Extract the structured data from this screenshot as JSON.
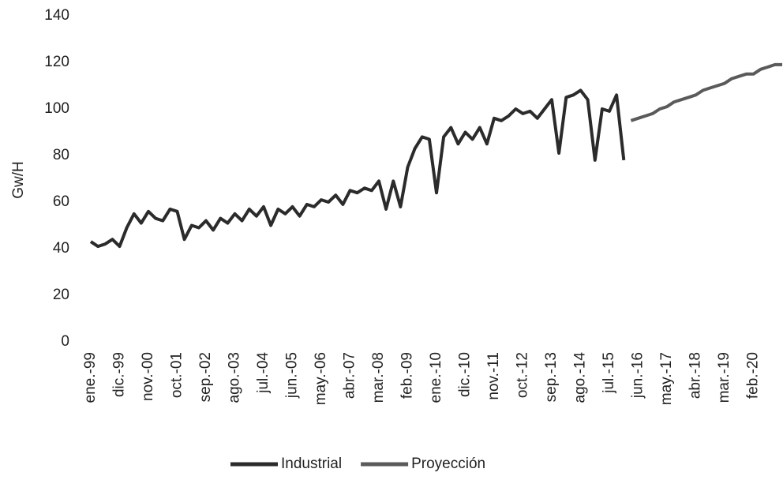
{
  "chart_data": {
    "type": "line",
    "y_label": "Gw/H",
    "categories": [
      "ene.-99",
      null,
      null,
      null,
      "dic.-99",
      null,
      null,
      null,
      "nov.-00",
      null,
      null,
      null,
      "oct.-01",
      null,
      null,
      null,
      "sep.-02",
      null,
      null,
      null,
      "ago.-03",
      null,
      null,
      null,
      "jul.-04",
      null,
      null,
      null,
      "jun.-05",
      null,
      null,
      null,
      "may.-06",
      null,
      null,
      null,
      "abr.-07",
      null,
      null,
      null,
      "mar.-08",
      null,
      null,
      null,
      "feb.-09",
      null,
      null,
      null,
      "ene.-10",
      null,
      null,
      null,
      "dic.-10",
      null,
      null,
      null,
      "nov.-11",
      null,
      null,
      null,
      "oct.-12",
      null,
      null,
      null,
      "sep.-13",
      null,
      null,
      null,
      "ago.-14",
      null,
      null,
      null,
      "jul.-15",
      null,
      null,
      null,
      "jun.-16",
      null,
      null,
      null,
      "may.-17",
      null,
      null,
      null,
      "abr.-18",
      null,
      null,
      null,
      "mar.-19",
      null,
      null,
      null,
      "feb.-20",
      null,
      null,
      null,
      null
    ],
    "series": [
      {
        "name": "Industrial",
        "color": "#2b2b2b",
        "values": [
          43,
          41,
          42,
          44,
          41,
          49,
          55,
          51,
          56,
          53,
          52,
          57,
          56,
          44,
          50,
          49,
          52,
          48,
          53,
          51,
          55,
          52,
          57,
          54,
          58,
          50,
          57,
          55,
          58,
          54,
          59,
          58,
          61,
          60,
          63,
          59,
          65,
          64,
          66,
          65,
          69,
          57,
          69,
          58,
          75,
          83,
          88,
          87,
          64,
          88,
          92,
          85,
          90,
          87,
          92,
          85,
          96,
          95,
          97,
          100,
          98,
          99,
          96,
          100,
          104,
          81,
          105,
          106,
          108,
          104,
          78,
          100,
          99,
          106,
          78,
          null,
          null,
          null,
          null,
          null,
          null,
          null,
          null,
          null,
          null,
          null,
          null,
          null,
          null,
          null,
          null,
          null,
          null,
          null,
          null,
          null,
          null
        ]
      },
      {
        "name": "Proyección",
        "color": "#5a5a5a",
        "values": [
          null,
          null,
          null,
          null,
          null,
          null,
          null,
          null,
          null,
          null,
          null,
          null,
          null,
          null,
          null,
          null,
          null,
          null,
          null,
          null,
          null,
          null,
          null,
          null,
          null,
          null,
          null,
          null,
          null,
          null,
          null,
          null,
          null,
          null,
          null,
          null,
          null,
          null,
          null,
          null,
          null,
          null,
          null,
          null,
          null,
          null,
          null,
          null,
          null,
          null,
          null,
          null,
          null,
          null,
          null,
          null,
          null,
          null,
          null,
          null,
          null,
          null,
          null,
          null,
          null,
          null,
          null,
          null,
          null,
          null,
          null,
          null,
          null,
          null,
          null,
          95,
          96,
          97,
          98,
          100,
          101,
          103,
          104,
          105,
          106,
          108,
          109,
          110,
          111,
          113,
          114,
          115,
          115,
          117,
          118,
          119,
          119
        ]
      }
    ],
    "ylim": [
      0,
      140
    ],
    "yticks": [
      0,
      20,
      40,
      60,
      80,
      100,
      120,
      140
    ],
    "grid": false,
    "legend": "bottom"
  }
}
